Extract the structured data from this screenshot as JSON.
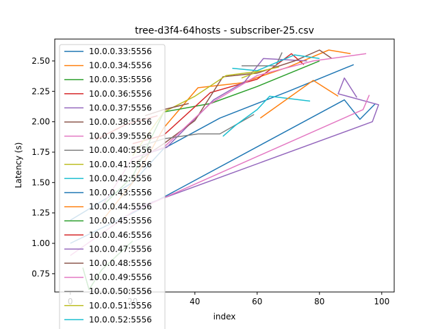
{
  "chart_data": {
    "type": "line",
    "title": "tree-d3f4-64hosts - subscriber-25.csv",
    "xlabel": "index",
    "ylabel": "Latency (s)",
    "xlim": [
      -5,
      104
    ],
    "ylim": [
      0.6,
      2.68
    ],
    "x_ticks": [
      0,
      20,
      40,
      60,
      80,
      100
    ],
    "y_ticks": [
      0.75,
      1.0,
      1.25,
      1.5,
      1.75,
      2.0,
      2.25,
      2.5
    ],
    "grid": false,
    "legend_position": "upper-left",
    "series": [
      {
        "name": "10.0.0.33:5556",
        "color": "#1f77b4",
        "x": [
          0,
          20,
          30,
          48,
          70,
          91
        ],
        "y": [
          1.19,
          1.5,
          1.78,
          2.03,
          2.25,
          2.47
        ]
      },
      {
        "name": "10.0.0.34:5556",
        "color": "#ff7f0e",
        "x": [
          10,
          20,
          30,
          41,
          55,
          70,
          83,
          90
        ],
        "y": [
          1.18,
          1.5,
          1.95,
          2.28,
          2.32,
          2.45,
          2.59,
          2.56
        ]
      },
      {
        "name": "10.0.0.35:5556",
        "color": "#2c9f2c",
        "x": [
          10,
          20,
          30,
          45,
          60,
          80
        ],
        "y": [
          1.3,
          1.55,
          2.08,
          2.15,
          2.29,
          2.5
        ]
      },
      {
        "name": "10.0.0.36:5556",
        "color": "#d62728",
        "x": [
          20,
          30,
          45,
          60,
          71,
          75
        ],
        "y": [
          1.82,
          1.89,
          2.24,
          2.35,
          2.56,
          2.47
        ]
      },
      {
        "name": "10.0.0.37:5556",
        "color": "#9467bd",
        "x": [
          20,
          31,
          46,
          56,
          62,
          76
        ],
        "y": [
          1.7,
          1.79,
          2.18,
          2.33,
          2.52,
          2.5
        ]
      },
      {
        "name": "10.0.0.38:5556",
        "color": "#8c564b",
        "x": [
          20,
          30,
          40,
          49,
          60,
          72,
          80,
          84
        ],
        "y": [
          1.65,
          1.82,
          2.01,
          2.37,
          2.4,
          2.5,
          2.59,
          2.52
        ]
      },
      {
        "name": "10.0.0.39:5556",
        "color": "#e377c2",
        "x": [
          10,
          20,
          30,
          45,
          60,
          78,
          95
        ],
        "y": [
          1.3,
          1.7,
          1.79,
          2.15,
          2.38,
          2.5,
          2.56
        ]
      },
      {
        "name": "10.0.0.40:5556",
        "color": "#7f7f7f",
        "x": [
          20,
          30,
          41,
          48,
          59
        ],
        "y": [
          1.78,
          1.86,
          1.9,
          1.9,
          2.06
        ]
      },
      {
        "name": "10.0.0.41:5556",
        "color": "#bcbd22",
        "x": [
          20,
          30,
          40,
          50,
          62
        ],
        "y": [
          1.72,
          2.08,
          2.21,
          2.38,
          2.42
        ]
      },
      {
        "name": "10.0.0.42:5556",
        "color": "#17becf",
        "x": [
          49,
          53,
          60,
          64,
          77
        ],
        "y": [
          1.88,
          1.97,
          2.1,
          2.21,
          2.17
        ]
      },
      {
        "name": "10.0.0.43:5556",
        "color": "#1f77b4",
        "x": [
          0,
          20,
          30,
          88,
          93,
          98
        ],
        "y": [
          1.0,
          1.25,
          1.38,
          2.18,
          2.02,
          2.15
        ]
      },
      {
        "name": "10.0.0.44:5556",
        "color": "#ff7f0e",
        "x": [
          61,
          78,
          86
        ],
        "y": [
          2.03,
          2.34,
          2.21
        ]
      },
      {
        "name": "10.0.0.45:5556",
        "color": "#2c9f2c",
        "x": [
          4,
          6,
          10,
          20
        ],
        "y": [
          0.8,
          0.62,
          0.78,
          1.02
        ]
      },
      {
        "name": "10.0.0.46:5556",
        "color": "#d62728",
        "x": [
          8,
          18,
          28
        ],
        "y": [
          1.85,
          1.98,
          2.05
        ]
      },
      {
        "name": "10.0.0.47:5556",
        "color": "#9467bd",
        "x": [
          20,
          97,
          99,
          86,
          88,
          92
        ],
        "y": [
          1.28,
          2.0,
          2.14,
          2.23,
          2.36,
          2.2
        ]
      },
      {
        "name": "10.0.0.48:5556",
        "color": "#8c564b",
        "x": [
          24,
          30,
          38
        ],
        "y": [
          2.05,
          2.1,
          2.15
        ]
      },
      {
        "name": "10.0.0.49:5556",
        "color": "#e377c2",
        "x": [
          0,
          20,
          94,
          96
        ],
        "y": [
          0.9,
          1.26,
          2.1,
          2.22
        ]
      },
      {
        "name": "10.0.0.50:5556",
        "color": "#7f7f7f",
        "x": [
          55,
          66,
          68
        ],
        "y": [
          2.46,
          2.46,
          2.57
        ]
      },
      {
        "name": "10.0.0.51:5556",
        "color": "#bcbd22",
        "x": [
          55,
          60,
          67
        ],
        "y": [
          2.36,
          2.41,
          2.45
        ]
      },
      {
        "name": "10.0.0.52:5556",
        "color": "#17becf",
        "x": [
          52,
          60,
          72,
          80
        ],
        "y": [
          2.44,
          2.42,
          2.55,
          2.52
        ]
      }
    ]
  }
}
